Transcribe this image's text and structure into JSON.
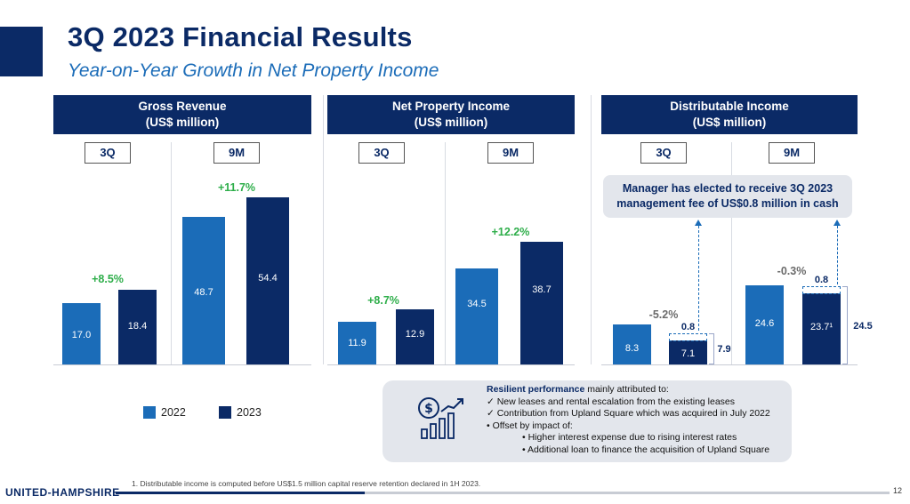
{
  "header": {
    "title": "3Q 2023 Financial Results",
    "subtitle": "Year-on-Year Growth in Net Property Income"
  },
  "panels": [
    {
      "id": "gross-revenue",
      "title": "Gross Revenue",
      "unit": "(US$ million)",
      "periods": [
        "3Q",
        "9M"
      ],
      "values": {
        "q3_2022": "17.0",
        "q3_2023": "18.4",
        "m9_2022": "48.7",
        "m9_2023": "54.4"
      },
      "growth": {
        "q3": "+8.5%",
        "m9": "+11.7%"
      }
    },
    {
      "id": "net-property-income",
      "title": "Net Property Income",
      "unit": "(US$ million)",
      "periods": [
        "3Q",
        "9M"
      ],
      "values": {
        "q3_2022": "11.9",
        "q3_2023": "12.9",
        "m9_2022": "34.5",
        "m9_2023": "38.7"
      },
      "growth": {
        "q3": "+8.7%",
        "m9": "+12.2%"
      }
    },
    {
      "id": "distributable-income",
      "title": "Distributable Income",
      "unit": "(US$ million)",
      "periods": [
        "3Q",
        "9M"
      ],
      "values": {
        "q3_2022": "8.3",
        "q3_2023": "7.1",
        "m9_2022": "24.6",
        "m9_2023": "23.7¹"
      },
      "growth": {
        "q3": "-5.2%",
        "m9": "-0.3%"
      },
      "fee": {
        "q3": "0.8",
        "m9": "0.8"
      },
      "totals": {
        "q3": "7.9",
        "m9": "24.5"
      }
    }
  ],
  "chart_data": {
    "type": "bar",
    "title": "3Q 2023 Financial Results",
    "categories": [
      "Gross Revenue 3Q",
      "Gross Revenue 9M",
      "Net Property Income 3Q",
      "Net Property Income 9M",
      "Distributable Income 3Q",
      "Distributable Income 9M"
    ],
    "series": [
      {
        "name": "2022",
        "values": [
          17.0,
          48.7,
          11.9,
          34.5,
          8.3,
          24.6
        ]
      },
      {
        "name": "2023",
        "values": [
          18.4,
          54.4,
          12.9,
          38.7,
          7.1,
          23.7
        ]
      }
    ],
    "ylabel": "US$ million"
  },
  "callout": {
    "line1": "Manager has elected to receive 3Q 2023",
    "line2": "management fee of US$0.8 million in cash"
  },
  "legend": {
    "y2022": "2022",
    "y2023": "2023"
  },
  "colors": {
    "y2022": "#1b6cb8",
    "y2023": "#0b2a66",
    "positive": "#2eae4a",
    "negative": "#6b6b6b"
  },
  "info": {
    "lead_bold": "Resilient performance",
    "lead_rest": " mainly attributed to:",
    "items": [
      "✓  New leases and rental escalation from the existing leases",
      "✓  Contribution from Upland Square which was acquired in July 2022",
      "•   Offset by impact of:"
    ],
    "subitems": [
      "•    Higher interest expense due to rising interest rates",
      "•    Additional loan to finance the acquisition of Upland Square"
    ]
  },
  "footer": {
    "footnote": "1.     Distributable income is computed before US$1.5 million capital reserve retention declared in 1H 2023.",
    "logo": "UNITED-HAMPSHIRE",
    "page": "12"
  }
}
